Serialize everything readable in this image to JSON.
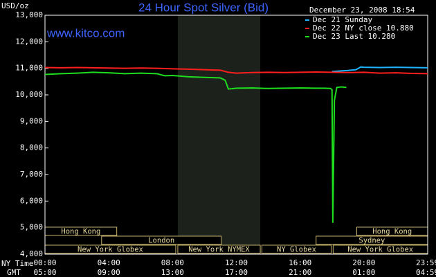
{
  "chart_data": {
    "type": "line",
    "title": "24 Hour Spot Silver (Bid)",
    "timestamp": "December 23, 2008 18:54",
    "watermark": "www.kitco.com",
    "y_label": "USD/oz",
    "x_label": "NY Time",
    "x2_label": "GMT",
    "xlim": [
      0,
      24
    ],
    "ylim": [
      4,
      13
    ],
    "yticks": [
      {
        "value": 4,
        "label": "4,000"
      },
      {
        "value": 5,
        "label": "5,000"
      },
      {
        "value": 6,
        "label": "6,000"
      },
      {
        "value": 7,
        "label": "7,000"
      },
      {
        "value": 8,
        "label": "8,000"
      },
      {
        "value": 9,
        "label": "9,000"
      },
      {
        "value": 10,
        "label": "10,000"
      },
      {
        "value": 11,
        "label": "11,000"
      },
      {
        "value": 12,
        "label": "12,000"
      },
      {
        "value": 13,
        "label": "13,000"
      }
    ],
    "xticks": [
      {
        "value": 0,
        "label": "00:00"
      },
      {
        "value": 4,
        "label": "04:00"
      },
      {
        "value": 8,
        "label": "08:00"
      },
      {
        "value": 12,
        "label": "12:00"
      },
      {
        "value": 16,
        "label": "16:00"
      },
      {
        "value": 20,
        "label": "20:00"
      },
      {
        "value": 23.983,
        "label": "23:59"
      }
    ],
    "x2ticks": [
      {
        "value": 0,
        "label": "05:00"
      },
      {
        "value": 4,
        "label": "09:00"
      },
      {
        "value": 8,
        "label": "13:00"
      },
      {
        "value": 12,
        "label": "17:00"
      },
      {
        "value": 16,
        "label": "21:00"
      },
      {
        "value": 20,
        "label": "01:00"
      },
      {
        "value": 23.983,
        "label": "04:59"
      }
    ],
    "grid": false,
    "shaded_range": [
      8.33,
      13.5
    ],
    "sessions": [
      {
        "label": "Hong Kong",
        "start": 0,
        "end": 4.5,
        "row": 0
      },
      {
        "label": "Hong Kong",
        "start": 19.55,
        "end": 24,
        "row": 0
      },
      {
        "label": "London",
        "start": 3.55,
        "end": 11.05,
        "row": 1
      },
      {
        "label": "Sydney",
        "start": 17.0,
        "end": 24,
        "row": 1
      },
      {
        "label": "New York Globex",
        "start": 0,
        "end": 8.2,
        "row": 2
      },
      {
        "label": "New York NYMEX",
        "start": 8.33,
        "end": 13.5,
        "row": 2
      },
      {
        "label": "NY Globex",
        "start": 13.6,
        "end": 17.95,
        "row": 2
      },
      {
        "label": "New York Globex",
        "start": 18.07,
        "end": 24,
        "row": 2
      }
    ],
    "series": [
      {
        "name": "Dec 21 Sunday",
        "color": "#1eb4ff",
        "x": [
          18.0,
          18.5,
          19,
          19.5,
          19.8,
          20,
          21,
          22,
          23,
          24
        ],
        "values": [
          10.88,
          10.9,
          10.92,
          10.95,
          11.05,
          11.04,
          11.03,
          11.04,
          11.03,
          11.02
        ]
      },
      {
        "name": "Dec 22 NY close 10.880",
        "color": "#ff1e1e",
        "x": [
          0,
          1,
          2,
          3,
          4,
          5,
          6,
          7,
          8,
          9,
          10,
          11,
          11.5,
          12,
          13,
          14,
          15,
          16,
          17,
          18,
          19,
          20,
          21,
          22,
          23,
          24
        ],
        "values": [
          11.03,
          11.02,
          11.03,
          11.02,
          11.01,
          11.0,
          11.01,
          11.0,
          10.98,
          10.97,
          10.95,
          10.93,
          10.85,
          10.82,
          10.84,
          10.85,
          10.84,
          10.85,
          10.86,
          10.85,
          10.84,
          10.85,
          10.82,
          10.83,
          10.81,
          10.8
        ]
      },
      {
        "name": "Dec 23 Last 10.280",
        "color": "#1edc1e",
        "x": [
          0,
          1,
          2,
          3,
          4,
          5,
          6,
          7,
          7.5,
          8,
          9,
          10,
          11,
          11.3,
          11.5,
          12,
          13,
          14,
          15,
          16,
          17,
          17.5,
          17.9,
          18.0,
          18.05,
          18.15,
          18.3,
          18.6,
          18.9
        ],
        "values": [
          10.77,
          10.8,
          10.82,
          10.85,
          10.83,
          10.8,
          10.82,
          10.8,
          10.72,
          10.73,
          10.68,
          10.66,
          10.64,
          10.55,
          10.22,
          10.25,
          10.26,
          10.24,
          10.25,
          10.26,
          10.25,
          10.25,
          10.24,
          10.2,
          5.2,
          9.8,
          10.28,
          10.3,
          10.28
        ]
      }
    ]
  }
}
